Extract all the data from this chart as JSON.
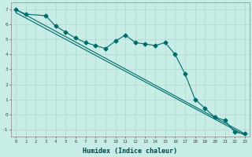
{
  "title": "",
  "xlabel": "Humidex (Indice chaleur)",
  "ylabel": "",
  "xlim": [
    -0.5,
    23.5
  ],
  "ylim": [
    -1.5,
    7.5
  ],
  "xticks": [
    0,
    1,
    2,
    3,
    4,
    5,
    6,
    7,
    8,
    9,
    10,
    11,
    12,
    13,
    14,
    15,
    16,
    17,
    18,
    19,
    20,
    21,
    22,
    23
  ],
  "yticks": [
    -1,
    0,
    1,
    2,
    3,
    4,
    5,
    6,
    7
  ],
  "bg_color": "#c8ece6",
  "grid_color": "#b0d8d0",
  "line_color": "#006b6b",
  "line1_x": [
    0,
    1,
    3,
    4,
    5,
    6,
    7,
    8,
    9,
    10,
    11,
    12,
    13,
    14,
    15,
    16,
    17,
    18,
    19,
    20,
    21,
    22,
    23
  ],
  "line1_y": [
    7.0,
    6.7,
    6.6,
    5.9,
    5.5,
    5.1,
    4.8,
    4.6,
    4.4,
    4.9,
    5.3,
    4.8,
    4.7,
    4.6,
    4.8,
    4.0,
    2.7,
    1.0,
    0.4,
    -0.2,
    -0.4,
    -1.2,
    -1.3
  ],
  "line2_x": [
    0,
    23
  ],
  "line2_y": [
    7.0,
    -1.3
  ],
  "line3_x": [
    0,
    23
  ],
  "line3_y": [
    6.8,
    -1.4
  ],
  "marker": "D",
  "markersize": 2.5,
  "linewidth": 0.8
}
